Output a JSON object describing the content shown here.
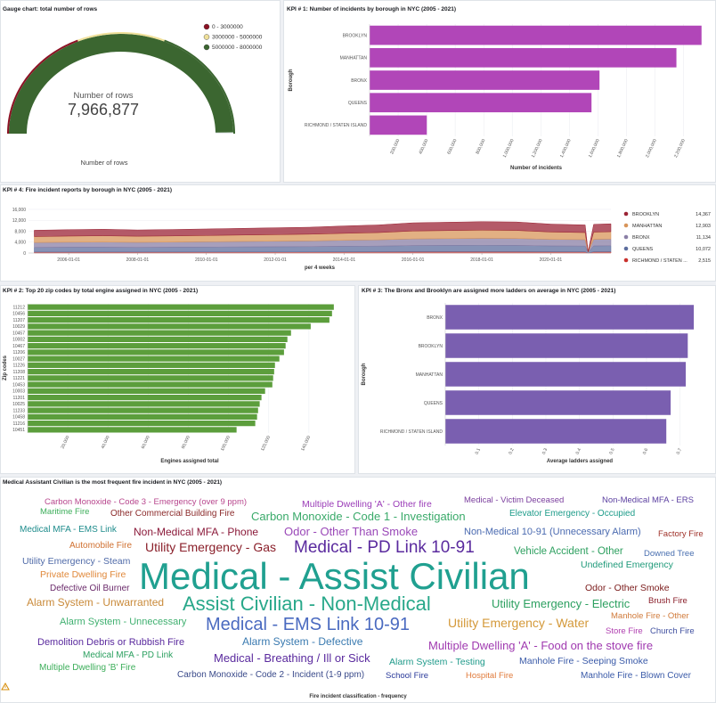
{
  "chart_data": [
    {
      "type": "gauge",
      "title": "Gauge chart: total number of rows",
      "label": "Number of rows",
      "value": 7966877,
      "value_label": "7,966,877",
      "axis_label": "Number of rows",
      "lim": [
        0,
        8000000
      ],
      "color": "#3b6630",
      "ranges": [
        {
          "name": "0 - 3000000",
          "from": 0,
          "to": 3000000,
          "color": "#8c1224"
        },
        {
          "name": "3000000 - 5000000",
          "from": 3000000,
          "to": 5000000,
          "color": "#efe09a"
        },
        {
          "name": "5000000 - 8000000",
          "from": 5000000,
          "to": 8000000,
          "color": "#3b6630"
        }
      ]
    },
    {
      "type": "bar",
      "horizontal": true,
      "title": "KPI # 1: Number of incidents by borough in NYC (2005 - 2021)",
      "categories": [
        "BROOKLYN",
        "MANHATTAN",
        "BRONX",
        "QUEENS",
        "RICHMOND / STATEN ISLAND"
      ],
      "values": [
        2326000,
        2150000,
        1611000,
        1555000,
        401000
      ],
      "color": "#b146b8",
      "xlim": [
        0,
        2340000
      ],
      "xticks": [
        {
          "value": 200000,
          "label": "200,000"
        },
        {
          "value": 400000,
          "label": "400,000"
        },
        {
          "value": 600000,
          "label": "600,000"
        },
        {
          "value": 800000,
          "label": "800,000"
        },
        {
          "value": 1000000,
          "label": "1,000,000"
        },
        {
          "value": 1200000,
          "label": "1,200,000"
        },
        {
          "value": 1400000,
          "label": "1,400,000"
        },
        {
          "value": 1600000,
          "label": "1,600,000"
        },
        {
          "value": 1800000,
          "label": "1,800,000"
        },
        {
          "value": 2000000,
          "label": "2,000,000"
        },
        {
          "value": 2200000,
          "label": "2,200,000"
        }
      ],
      "xlabel": "Number of incidents",
      "ylabel": "Borough",
      "grid": true
    },
    {
      "type": "area",
      "stacked": true,
      "title": "KPI # 4: Fire incident reports by borough in NYC (2005 - 2021)",
      "x": [
        "2005-01-01",
        "2006-01-01",
        "2007-01-01",
        "2008-01-01",
        "2009-01-01",
        "2010-01-01",
        "2011-01-01",
        "2012-01-01",
        "2013-01-01",
        "2014-01-01",
        "2015-01-01",
        "2016-01-01",
        "2017-01-01",
        "2018-01-01",
        "2019-01-01",
        "2020-01-01",
        "2021-01-01",
        "2021-02-01",
        "2021-04-01",
        "2021-10-01"
      ],
      "series": [
        {
          "name": "BROOKLYN",
          "color": "#9b2335",
          "legend_value": {
            "value": 14367,
            "label": "14,367"
          },
          "values": [
            2300,
            2350,
            2400,
            2300,
            2350,
            2400,
            2450,
            2500,
            2550,
            2700,
            2800,
            3000,
            3050,
            3100,
            3100,
            2900,
            2800,
            150,
            2850,
            2900
          ]
        },
        {
          "name": "MANHATTAN",
          "color": "#d8955a",
          "legend_value": {
            "value": 12903,
            "label": "12,903"
          },
          "values": [
            2200,
            2250,
            2300,
            2250,
            2250,
            2300,
            2350,
            2400,
            2450,
            2550,
            2650,
            2900,
            2950,
            3000,
            2950,
            2700,
            2600,
            140,
            2650,
            2700
          ]
        },
        {
          "name": "BRONX",
          "color": "#8a7fa6",
          "legend_value": {
            "value": 11134,
            "label": "11,134"
          },
          "values": [
            1800,
            1850,
            1900,
            1850,
            1900,
            1950,
            2000,
            2050,
            2100,
            2200,
            2300,
            2450,
            2500,
            2550,
            2550,
            2400,
            2350,
            120,
            2400,
            2450
          ]
        },
        {
          "name": "QUEENS",
          "color": "#5d6e9e",
          "legend_value": {
            "value": 10072,
            "label": "10,072"
          },
          "values": [
            1700,
            1750,
            1750,
            1700,
            1750,
            1800,
            1850,
            1900,
            1950,
            2050,
            2100,
            2250,
            2300,
            2350,
            2300,
            2150,
            2100,
            110,
            2150,
            2200
          ]
        },
        {
          "name": "RICHMOND / STATEN ...",
          "color": "#c9302c",
          "legend_value": {
            "value": 2515,
            "label": "2,515"
          },
          "values": [
            350,
            360,
            370,
            360,
            370,
            380,
            390,
            400,
            410,
            430,
            450,
            480,
            490,
            500,
            490,
            460,
            450,
            30,
            460,
            470
          ]
        }
      ],
      "xlim": [
        "2004-11-01",
        "2021-10-01"
      ],
      "xticks": [
        "2006-01-01",
        "2008-01-01",
        "2010-01-01",
        "2012-01-01",
        "2014-01-01",
        "2016-01-01",
        "2018-01-01",
        "2020-01-01"
      ],
      "ylim": [
        0,
        16000
      ],
      "yticks": [
        0,
        {
          "value": 4000,
          "label": "4,000"
        },
        {
          "value": 8000,
          "label": "8,000"
        },
        {
          "value": 12000,
          "label": "12,000"
        },
        {
          "value": 16000,
          "label": "16,000"
        }
      ],
      "xlabel": "per 4 weeks",
      "grid": true
    },
    {
      "type": "bar",
      "horizontal": true,
      "title": "KPI # 2: Top 20 zip codes by total engine assigned in NYC (2005 - 2021)",
      "categories": [
        "11212",
        "10456",
        "11207",
        "10029",
        "10457",
        "10002",
        "10467",
        "11206",
        "10027",
        "11226",
        "11208",
        "11221",
        "10453",
        "10003",
        "11201",
        "10025",
        "11233",
        "10458",
        "11216",
        "10451"
      ],
      "values": [
        152400,
        151500,
        150200,
        140900,
        131100,
        129300,
        128400,
        127600,
        125300,
        123100,
        122700,
        122200,
        121800,
        118200,
        116400,
        115500,
        114700,
        114200,
        113300,
        104000
      ],
      "color": "#5c9e3c",
      "xlim": [
        0,
        160000
      ],
      "xticks": [
        {
          "value": 20000,
          "label": "20,000"
        },
        {
          "value": 40000,
          "label": "40,000"
        },
        {
          "value": 60000,
          "label": "60,000"
        },
        {
          "value": 80000,
          "label": "80,000"
        },
        {
          "value": 100000,
          "label": "100,000"
        },
        {
          "value": 120000,
          "label": "120,000"
        },
        {
          "value": 140000,
          "label": "140,000"
        }
      ],
      "xlabel": "Engines assigned total",
      "ylabel": "Zip codes",
      "grid": true
    },
    {
      "type": "bar",
      "horizontal": true,
      "title": "KPI # 3: The Bronx and Brooklyn are assigned more ladders on average in NYC (2005 - 2021)",
      "categories": [
        "BRONX",
        "BROOKLYN",
        "MANHATTAN",
        "QUEENS",
        "RICHMOND / STATEN ISLAND"
      ],
      "values": [
        0.741,
        0.723,
        0.717,
        0.672,
        0.659
      ],
      "color": "#7a5fb0",
      "xlim": [
        0,
        0.77
      ],
      "xticks": [
        0.1,
        0.2,
        0.3,
        0.4,
        0.5,
        0.6,
        0.7
      ],
      "xlabel": "Average ladders assigned",
      "ylabel": "Borough",
      "grid": true
    },
    {
      "type": "wordcloud",
      "title": "Medical Assistant Civilian is the most frequent fire incident in NYC (2005 - 2021)",
      "xlabel": "Fire incident classification - frequency",
      "words": [
        {
          "text": "Carbon Monoxide - Code 3 - Emergency (over 9 ppm)",
          "color": "#b8478e"
        },
        {
          "text": "Multiple Dwelling 'A' - Other fire",
          "color": "#9b3db8"
        },
        {
          "text": "Medical - Victim Deceased",
          "color": "#7b3f9e"
        },
        {
          "text": "Non-Medical MFA - ERS",
          "color": "#5b3fa0"
        },
        {
          "text": "Maritime Fire",
          "color": "#3cae5a"
        },
        {
          "text": "Other Commercial Building Fire",
          "color": "#8b2a2a"
        },
        {
          "text": "Carbon Monoxide - Code 1 - Investigation",
          "color": "#3aaa6a"
        },
        {
          "text": "Elevator Emergency - Occupied",
          "color": "#1e9c8a"
        },
        {
          "text": "Medical MFA - EMS Link",
          "color": "#1e8c8c"
        },
        {
          "text": "Non-Medical MFA - Phone",
          "color": "#8b1a3a"
        },
        {
          "text": "Odor - Other Than Smoke",
          "color": "#9a48b8"
        },
        {
          "text": "Non-Medical 10-91 (Unnecessary Alarm)",
          "color": "#4a6ab0"
        },
        {
          "text": "Factory Fire",
          "color": "#a0322a"
        },
        {
          "text": "Automobile Fire",
          "color": "#d07030"
        },
        {
          "text": "Utility Emergency - Gas",
          "color": "#8a1f2a"
        },
        {
          "text": "Medical - PD Link 10-91",
          "color": "#5a2a9e"
        },
        {
          "text": "Vehicle Accident - Other",
          "color": "#2ea060"
        },
        {
          "text": "Downed Tree",
          "color": "#4a70b0"
        },
        {
          "text": "Utility Emergency - Steam",
          "color": "#4f6aa8"
        },
        {
          "text": "Undefined Emergency",
          "color": "#1f9a7a"
        },
        {
          "text": "Private Dwelling Fire",
          "color": "#e0883a"
        },
        {
          "text": "Medical - Assist Civilian",
          "color": "#20a090"
        },
        {
          "text": "Defective Oil Burner",
          "color": "#6a2a6a"
        },
        {
          "text": "Odor - Other Smoke",
          "color": "#7a1a1a"
        },
        {
          "text": "Alarm System - Unwarranted",
          "color": "#c98a3a"
        },
        {
          "text": "Assist Civilian - Non-Medical",
          "color": "#28a88a"
        },
        {
          "text": "Utility Emergency - Electric",
          "color": "#2ca060"
        },
        {
          "text": "Brush Fire",
          "color": "#8a1f2a"
        },
        {
          "text": "Alarm System - Unnecessary",
          "color": "#40b070"
        },
        {
          "text": "Medical - EMS Link 10-91",
          "color": "#4a6ac0"
        },
        {
          "text": "Utility Emergency - Water",
          "color": "#d4993a"
        },
        {
          "text": "Manhole Fire - Other",
          "color": "#d07a3a"
        },
        {
          "text": "Store Fire",
          "color": "#b040b0"
        },
        {
          "text": "Church Fire",
          "color": "#4050a0"
        },
        {
          "text": "Demolition Debris or Rubbish Fire",
          "color": "#5a2a9e"
        },
        {
          "text": "Alarm System - Defective",
          "color": "#3a7ab0"
        },
        {
          "text": "Multiple Dwelling 'A' - Food on the stove fire",
          "color": "#a03ab0"
        },
        {
          "text": "Medical MFA - PD Link",
          "color": "#2ca060"
        },
        {
          "text": "Medical - Breathing / Ill or Sick",
          "color": "#5a2a9e"
        },
        {
          "text": "Alarm System - Testing",
          "color": "#1f9a8a"
        },
        {
          "text": "Manhole Fire - Seeping Smoke",
          "color": "#3a5aa8"
        },
        {
          "text": "Multiple Dwelling 'B' Fire",
          "color": "#3cae5a"
        },
        {
          "text": "Carbon Monoxide - Code 2 - Incident (1-9 ppm)",
          "color": "#3a4a8a"
        },
        {
          "text": "School Fire",
          "color": "#2a3a9a"
        },
        {
          "text": "Hospital Fire",
          "color": "#e07a3a"
        },
        {
          "text": "Manhole Fire - Blown Cover",
          "color": "#3a5aa8"
        }
      ]
    }
  ]
}
